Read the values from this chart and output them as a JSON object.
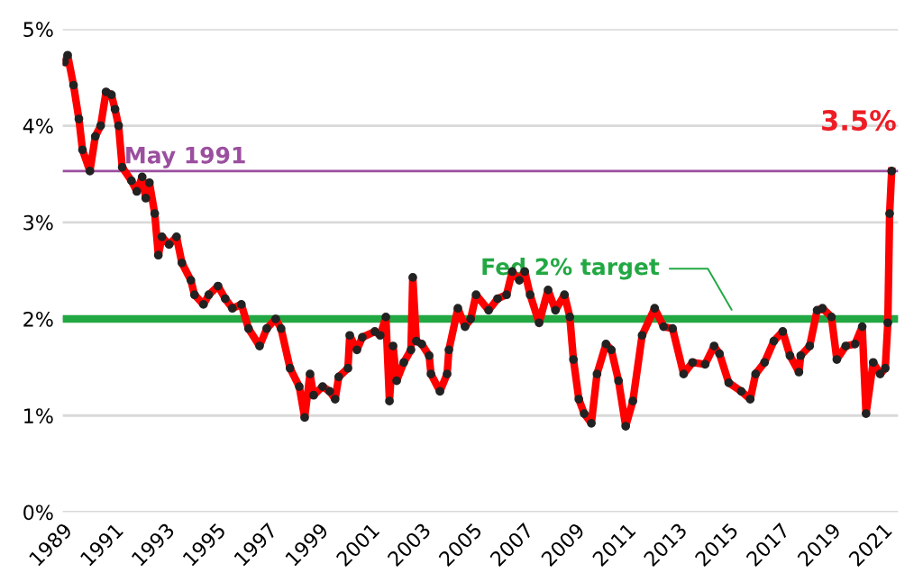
{
  "chart_data": {
    "type": "line",
    "x": [
      1989.07,
      1989.19,
      1989.42,
      1989.63,
      1989.77,
      1990.06,
      1990.27,
      1990.48,
      1990.69,
      1990.9,
      1991.04,
      1991.18,
      1991.32,
      1991.68,
      1991.89,
      1992.1,
      1992.24,
      1992.38,
      1992.59,
      1992.73,
      1992.87,
      1993.15,
      1993.44,
      1993.65,
      1994.0,
      1994.14,
      1994.49,
      1994.7,
      1995.06,
      1995.34,
      1995.62,
      1995.97,
      1996.25,
      1996.68,
      1996.96,
      1997.31,
      1997.52,
      1997.87,
      1998.23,
      1998.44,
      1998.65,
      1998.79,
      1999.14,
      1999.42,
      1999.63,
      1999.77,
      2000.13,
      2000.2,
      2000.48,
      2000.69,
      2001.18,
      2001.39,
      2001.61,
      2001.75,
      2001.89,
      2002.03,
      2002.31,
      2002.59,
      2002.66,
      2002.8,
      2003.01,
      2003.3,
      2003.37,
      2003.72,
      2004.0,
      2004.07,
      2004.42,
      2004.7,
      2004.92,
      2005.13,
      2005.62,
      2005.97,
      2006.32,
      2006.54,
      2006.82,
      2007.03,
      2007.24,
      2007.59,
      2007.94,
      2008.23,
      2008.58,
      2008.79,
      2008.93,
      2009.14,
      2009.35,
      2009.63,
      2009.85,
      2010.2,
      2010.41,
      2010.69,
      2010.97,
      2011.25,
      2011.61,
      2012.1,
      2012.45,
      2012.8,
      2013.23,
      2013.58,
      2014.07,
      2014.42,
      2014.63,
      2014.99,
      2015.48,
      2015.83,
      2016.04,
      2016.39,
      2016.75,
      2017.1,
      2017.38,
      2017.73,
      2017.8,
      2018.15,
      2018.44,
      2018.65,
      2019.0,
      2019.21,
      2019.56,
      2019.92,
      2020.2,
      2020.35,
      2020.63,
      2020.9,
      2021.1,
      2021.2,
      2021.27,
      2021.35
    ],
    "series": [
      {
        "color": "#ff0000",
        "values": [
          4.66,
          4.73,
          4.42,
          4.07,
          3.75,
          3.53,
          3.89,
          4.0,
          4.35,
          4.32,
          4.17,
          4.0,
          3.57,
          3.43,
          3.32,
          3.47,
          3.25,
          3.41,
          3.09,
          2.66,
          2.85,
          2.77,
          2.85,
          2.58,
          2.4,
          2.25,
          2.15,
          2.25,
          2.34,
          2.21,
          2.11,
          2.15,
          1.9,
          1.72,
          1.9,
          2.0,
          1.9,
          1.49,
          1.3,
          0.98,
          1.43,
          1.21,
          1.3,
          1.25,
          1.17,
          1.4,
          1.49,
          1.83,
          1.68,
          1.81,
          1.87,
          1.83,
          2.02,
          1.15,
          1.72,
          1.36,
          1.55,
          1.68,
          2.43,
          1.77,
          1.74,
          1.62,
          1.43,
          1.25,
          1.43,
          1.68,
          2.11,
          1.92,
          2.0,
          2.25,
          2.09,
          2.21,
          2.25,
          2.49,
          2.4,
          2.49,
          2.25,
          1.96,
          2.3,
          2.09,
          2.25,
          2.02,
          1.58,
          1.17,
          1.02,
          0.92,
          1.43,
          1.74,
          1.68,
          1.36,
          0.89,
          1.15,
          1.83,
          2.11,
          1.92,
          1.9,
          1.43,
          1.55,
          1.53,
          1.72,
          1.64,
          1.34,
          1.25,
          1.17,
          1.43,
          1.55,
          1.77,
          1.87,
          1.62,
          1.45,
          1.62,
          1.72,
          2.09,
          2.11,
          2.02,
          1.58,
          1.72,
          1.74,
          1.92,
          1.02,
          1.55,
          1.43,
          1.49,
          1.96,
          3.09,
          3.53
        ]
      }
    ],
    "marker": "circle",
    "line_style": "solid",
    "xlim": [
      1989,
      2021.6
    ],
    "xticks": [
      1989,
      1991,
      1993,
      1995,
      1997,
      1999,
      2001,
      2003,
      2005,
      2007,
      2009,
      2011,
      2013,
      2015,
      2017,
      2019,
      2021
    ],
    "ylim": [
      0,
      5
    ],
    "yticks": [
      {
        "value": 0,
        "label": "0%"
      },
      {
        "value": 1,
        "label": "1%"
      },
      {
        "value": 2,
        "label": "2%"
      },
      {
        "value": 3,
        "label": "3%"
      },
      {
        "value": 4,
        "label": "4%"
      },
      {
        "value": 5,
        "label": "5%"
      }
    ],
    "grid": "y",
    "legend": false,
    "ref_lines": [
      {
        "axis": "y",
        "value": 2,
        "label": "Fed 2% target",
        "color": "#22a843"
      },
      {
        "axis": "y",
        "value": 3.53,
        "label": "May 1991",
        "color": "#9b4f9f"
      }
    ],
    "annotations": [
      {
        "text": "3.5%",
        "x": 2021.35,
        "y": 3.53
      }
    ]
  }
}
